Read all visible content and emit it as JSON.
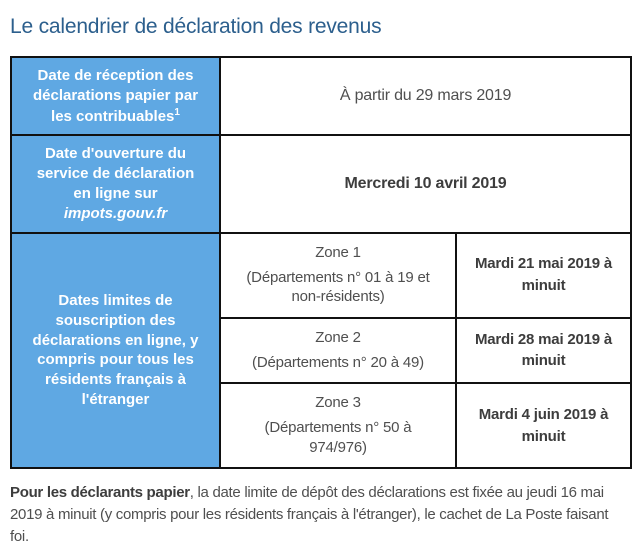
{
  "page_title": "Le calendrier de déclaration des revenus",
  "colors": {
    "cell_blue": "#5fa8e3",
    "title_blue": "#2c5f8d",
    "border_black": "#111111",
    "text_gray": "#4f4f4f"
  },
  "table": {
    "row_reception": {
      "label": "Date de réception des déclarations papier par les contribuables",
      "footnote_marker": "1",
      "value": "À partir du 29 mars 2019"
    },
    "row_ouverture": {
      "label": "Date d'ouverture du service de déclaration en ligne sur",
      "label_italic": "impots.gouv.fr",
      "value": "Mercredi 10 avril 2019"
    },
    "row_limites": {
      "label": "Dates limites de souscription des déclarations en ligne, y compris pour tous les résidents français à l'étranger",
      "zones": [
        {
          "name": "Zone 1",
          "departements": "(Départements n° 01 à 19 et non-résidents)",
          "deadline": "Mardi 21 mai 2019 à minuit"
        },
        {
          "name": "Zone 2",
          "departements": "(Départements n° 20 à 49)",
          "deadline": "Mardi 28 mai 2019 à minuit"
        },
        {
          "name": "Zone 3",
          "departements": "(Départements n° 50 à 974/976)",
          "deadline": "Mardi 4 juin 2019 à minuit"
        }
      ]
    }
  },
  "footer": {
    "lead_bold": "Pour les déclarants papier",
    "text": ", la date limite de dépôt des déclarations est fixée au jeudi 16 mai 2019 à minuit (y compris pour les résidents français à l'étranger), le cachet de La Poste faisant foi."
  }
}
